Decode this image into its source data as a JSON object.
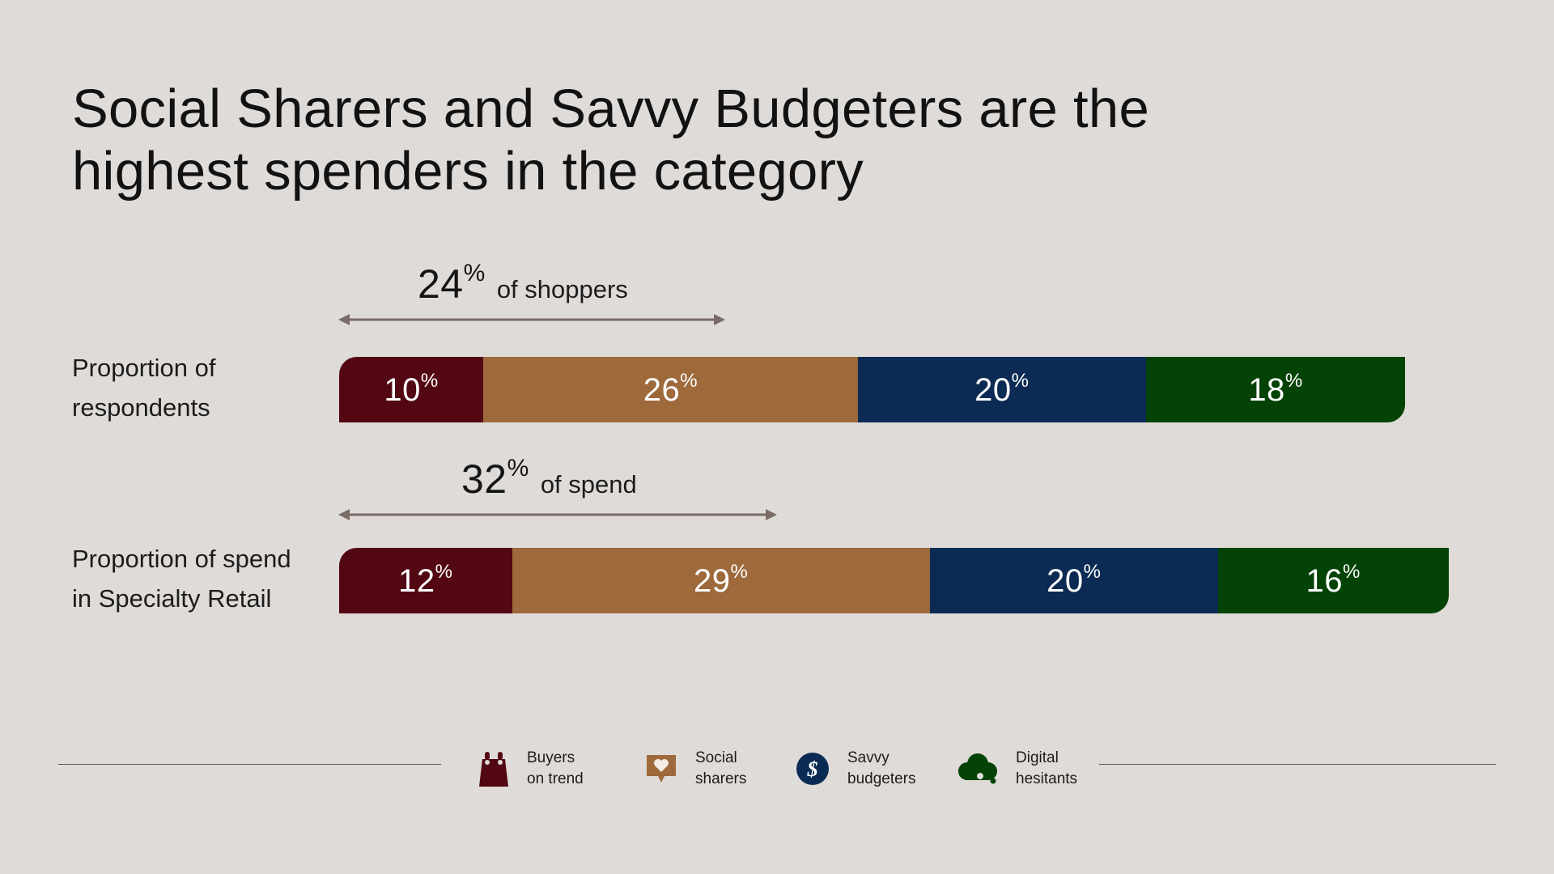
{
  "title": {
    "line1": "Social Sharers and Savvy Budgeters are the",
    "line2": "highest spenders in the category"
  },
  "colors": {
    "buyers_on_trend": "#520713",
    "social_sharers": "#9e693b",
    "savvy_budgeters": "#0b2b54",
    "digital_hesitants": "#034305",
    "arrow": "#7a6b66",
    "background": "#dfdbd8"
  },
  "annotations": {
    "shoppers": {
      "value": "24",
      "unit": "%",
      "label": "of shoppers"
    },
    "spend": {
      "value": "32",
      "unit": "%",
      "label": "of spend"
    }
  },
  "chart_data": {
    "type": "bar",
    "orientation": "horizontal-stacked",
    "categories": [
      "Proportion of respondents",
      "Proportion of spend in Specialty Retail"
    ],
    "category_lines": [
      [
        "Proportion of",
        "respondents"
      ],
      [
        "Proportion of spend",
        "in Specialty Retail"
      ]
    ],
    "series": [
      {
        "name": "Buyers on trend",
        "values": [
          10,
          12
        ]
      },
      {
        "name": "Social sharers",
        "values": [
          26,
          29
        ]
      },
      {
        "name": "Savvy budgeters",
        "values": [
          20,
          20
        ]
      },
      {
        "name": "Digital hesitants",
        "values": [
          18,
          16
        ]
      }
    ],
    "unit": "%",
    "legend_placement": "bottom-center",
    "grid": false
  },
  "legend": [
    {
      "lines": [
        "Buyers",
        "on trend"
      ],
      "icon": "shopping-bag-icon"
    },
    {
      "lines": [
        "Social",
        "sharers"
      ],
      "icon": "heart-chat-icon"
    },
    {
      "lines": [
        "Savvy",
        "budgeters"
      ],
      "icon": "money-icon"
    },
    {
      "lines": [
        "Digital",
        "hesitants"
      ],
      "icon": "cloud-icon"
    }
  ]
}
